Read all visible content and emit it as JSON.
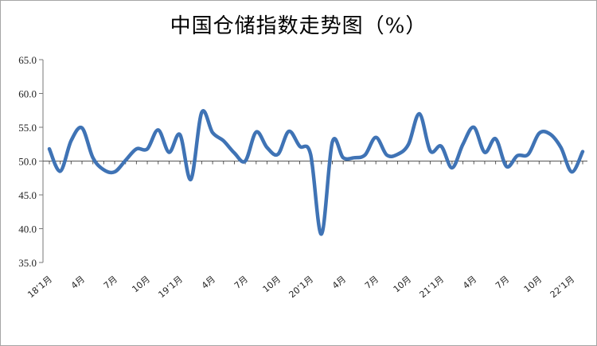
{
  "chart_data": {
    "type": "line",
    "title": "中国仓储指数走势图（%）",
    "xlabel": "",
    "ylabel": "",
    "ylim": [
      35,
      65
    ],
    "y_ticks": [
      "35.0",
      "40.0",
      "45.0",
      "50.0",
      "55.0",
      "60.0",
      "65.0"
    ],
    "reference_line": 50,
    "grid": false,
    "line_color": "#3f73b5",
    "x_tick_labels": [
      "18’1月",
      "4月",
      "7月",
      "10月",
      "19’1月",
      "4月",
      "7月",
      "10月",
      "20’1月",
      "4月",
      "7月",
      "10月",
      "21’1月",
      "4月",
      "7月",
      "10月",
      "22’1月"
    ],
    "x": [
      "2018-01",
      "2018-02",
      "2018-03",
      "2018-04",
      "2018-05",
      "2018-06",
      "2018-07",
      "2018-08",
      "2018-09",
      "2018-10",
      "2018-11",
      "2018-12",
      "2019-01",
      "2019-02",
      "2019-03",
      "2019-04",
      "2019-05",
      "2019-06",
      "2019-07",
      "2019-08",
      "2019-09",
      "2019-10",
      "2019-11",
      "2019-12",
      "2020-01",
      "2020-02",
      "2020-03",
      "2020-04",
      "2020-05",
      "2020-06",
      "2020-07",
      "2020-08",
      "2020-09",
      "2020-10",
      "2020-11",
      "2020-12",
      "2021-01",
      "2021-02",
      "2021-03",
      "2021-04",
      "2021-05",
      "2021-06",
      "2021-07",
      "2021-08",
      "2021-09",
      "2021-10",
      "2021-11",
      "2021-12",
      "2022-01",
      "2022-02"
    ],
    "series": [
      {
        "values": [
          51.8,
          48.5,
          53.0,
          54.9,
          50.5,
          48.7,
          48.4,
          50.1,
          51.8,
          51.8,
          54.6,
          51.3,
          53.9,
          47.3,
          57.2,
          54.2,
          53.0,
          51.2,
          50.0,
          54.3,
          52.0,
          51.0,
          54.4,
          52.2,
          51.0,
          39.2,
          52.8,
          50.5,
          50.5,
          50.9,
          53.5,
          50.9,
          51.0,
          52.5,
          57.0,
          51.5,
          52.2,
          49.0,
          52.5,
          55.0,
          51.3,
          53.3,
          49.2,
          50.8,
          51.0,
          54.1,
          54.0,
          52.0,
          48.4,
          51.4
        ]
      }
    ]
  }
}
